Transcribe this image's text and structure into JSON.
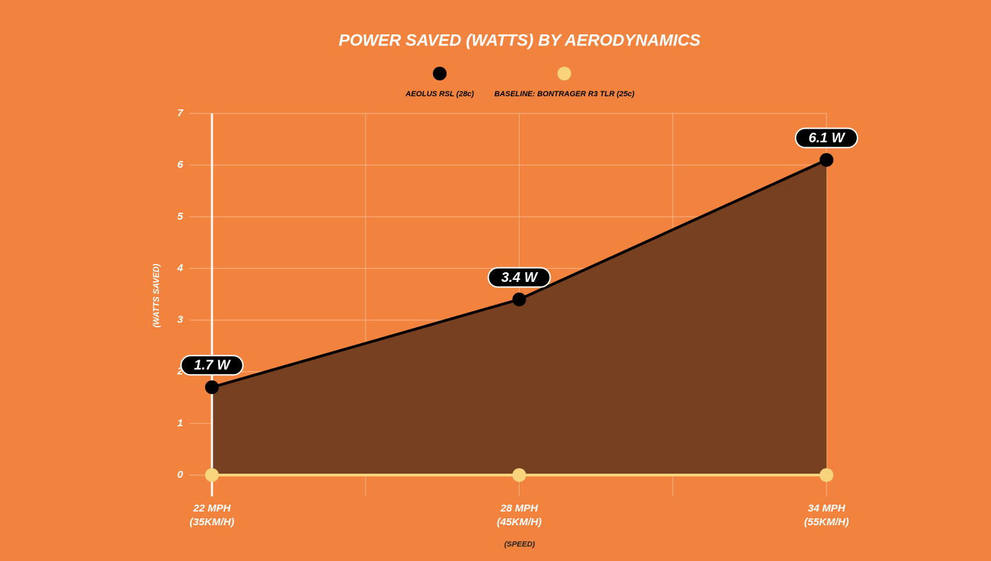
{
  "chart_data": {
    "type": "area-line",
    "title": "POWER SAVED (WATTS) BY AERODYNAMICS",
    "categories": [
      "22 MPH",
      "28 MPH",
      "34 MPH"
    ],
    "categories_metric": [
      "(35KM/H)",
      "(45KM/H)",
      "(55KM/H)"
    ],
    "series": [
      {
        "name": "AEOLUS RSL (28c)",
        "color": "#000000",
        "fill": "#774020",
        "values": [
          1.7,
          3.4,
          6.1
        ],
        "value_labels": [
          "1.7 W",
          "3.4 W",
          "6.1 W"
        ]
      },
      {
        "name": "BASELINE: BONTRAGER R3 TLR (25c)",
        "color": "#fad47c",
        "values": [
          0,
          0,
          0
        ]
      }
    ],
    "ylabel": "(WATTS SAVED)",
    "xlabel": "(SPEED)",
    "ylim": [
      0,
      7
    ],
    "yticks": [
      0,
      1,
      2,
      3,
      4,
      5,
      6,
      7
    ],
    "grid": true
  }
}
